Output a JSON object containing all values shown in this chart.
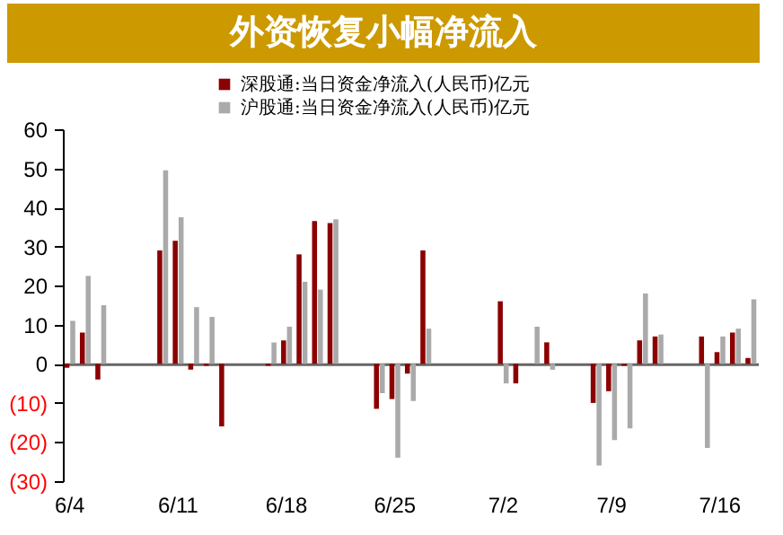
{
  "chart_data": {
    "type": "bar",
    "title": "外资恢复小幅净流入",
    "categories": [
      "6/4",
      null,
      null,
      null,
      null,
      null,
      null,
      "6/11",
      null,
      null,
      null,
      null,
      null,
      null,
      "6/18",
      null,
      null,
      null,
      null,
      null,
      null,
      "6/25",
      null,
      null,
      null,
      null,
      null,
      null,
      "7/2",
      null,
      null,
      null,
      null,
      null,
      null,
      "7/9",
      null,
      null,
      null,
      null,
      null,
      null,
      "7/16",
      null,
      null
    ],
    "series": [
      {
        "name": "深股通:当日资金净流入(人民币)亿元",
        "color": "#8b0000",
        "values": [
          -1,
          8,
          -4,
          null,
          null,
          null,
          29,
          31.5,
          -1.5,
          -0.5,
          -16,
          null,
          null,
          -0.5,
          6,
          28,
          36.5,
          36,
          null,
          null,
          -11.5,
          -9,
          -2.5,
          29,
          null,
          null,
          null,
          null,
          16,
          -5,
          null,
          5.5,
          null,
          null,
          -10,
          -7,
          -0.5,
          6,
          7,
          null,
          null,
          7,
          3,
          8,
          1.5
        ]
      },
      {
        "name": "沪股通:当日资金净流入(人民币)亿元",
        "color": "#aaaaaa",
        "values": [
          11,
          22.5,
          15,
          null,
          null,
          null,
          49.5,
          37.5,
          14.5,
          12,
          null,
          null,
          null,
          5.5,
          9.5,
          21,
          19,
          37,
          null,
          null,
          -7.5,
          -24,
          -9.5,
          9,
          null,
          null,
          null,
          null,
          -5,
          null,
          9.5,
          -1.5,
          null,
          null,
          -26,
          -19.5,
          -16.5,
          18,
          7.5,
          null,
          null,
          -21.5,
          7,
          9,
          16.5
        ]
      }
    ],
    "ylim": [
      -30,
      60
    ],
    "yticks": [
      {
        "value": -30,
        "label": "(30)"
      },
      {
        "value": -20,
        "label": "(20)"
      },
      {
        "value": -10,
        "label": "(10)"
      },
      0,
      10,
      20,
      30,
      40,
      50,
      60
    ],
    "legend": "top"
  }
}
